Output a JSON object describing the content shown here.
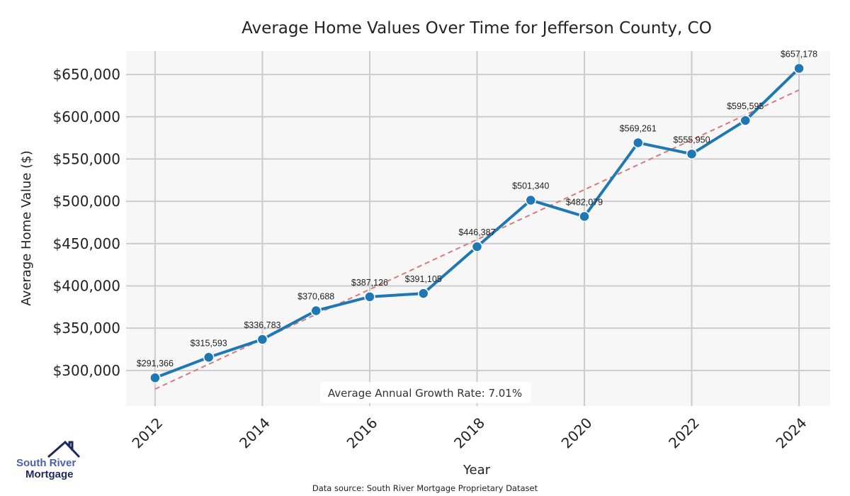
{
  "chart_data": {
    "type": "line",
    "title": "Average Home Values Over Time for Jefferson County, CO",
    "xlabel": "Year",
    "ylabel": "Average Home Value ($)",
    "x": [
      2012,
      2013,
      2014,
      2015,
      2016,
      2017,
      2018,
      2019,
      2020,
      2021,
      2022,
      2023,
      2024
    ],
    "series": [
      {
        "values": [
          291366,
          315593,
          336783,
          370688,
          387126,
          391105,
          446387,
          501340,
          482079,
          569261,
          555950,
          595595,
          657178
        ],
        "color": "#1f77b4"
      }
    ],
    "data_labels": [
      "$291,366",
      "$315,593",
      "$336,783",
      "$370,688",
      "$387,126",
      "$391,105",
      "$446,387",
      "$501,340",
      "$482,079",
      "$569,261",
      "$555,950",
      "$595,595",
      "$657,178"
    ],
    "trendline": {
      "style": "dashed",
      "color": "#d9797a",
      "start": [
        2012,
        278000
      ],
      "end": [
        2024,
        631600
      ]
    },
    "xticks": [
      2012,
      2014,
      2016,
      2018,
      2020,
      2022,
      2024
    ],
    "yticks": [
      300000,
      350000,
      400000,
      450000,
      500000,
      550000,
      600000,
      650000
    ],
    "ytick_labels": [
      "$300,000",
      "$350,000",
      "$400,000",
      "$450,000",
      "$500,000",
      "$550,000",
      "$600,000",
      "$650,000"
    ],
    "xlim": [
      2011.46,
      2024.58
    ],
    "ylim": [
      258000,
      677700
    ],
    "grid": true,
    "annotation": "Average Annual Growth Rate: 7.01%",
    "source": "Data source: South River Mortgage Proprietary Dataset",
    "background": "#f7f7f7"
  },
  "logo": {
    "line1": "South River",
    "line2": "Mortgage"
  }
}
